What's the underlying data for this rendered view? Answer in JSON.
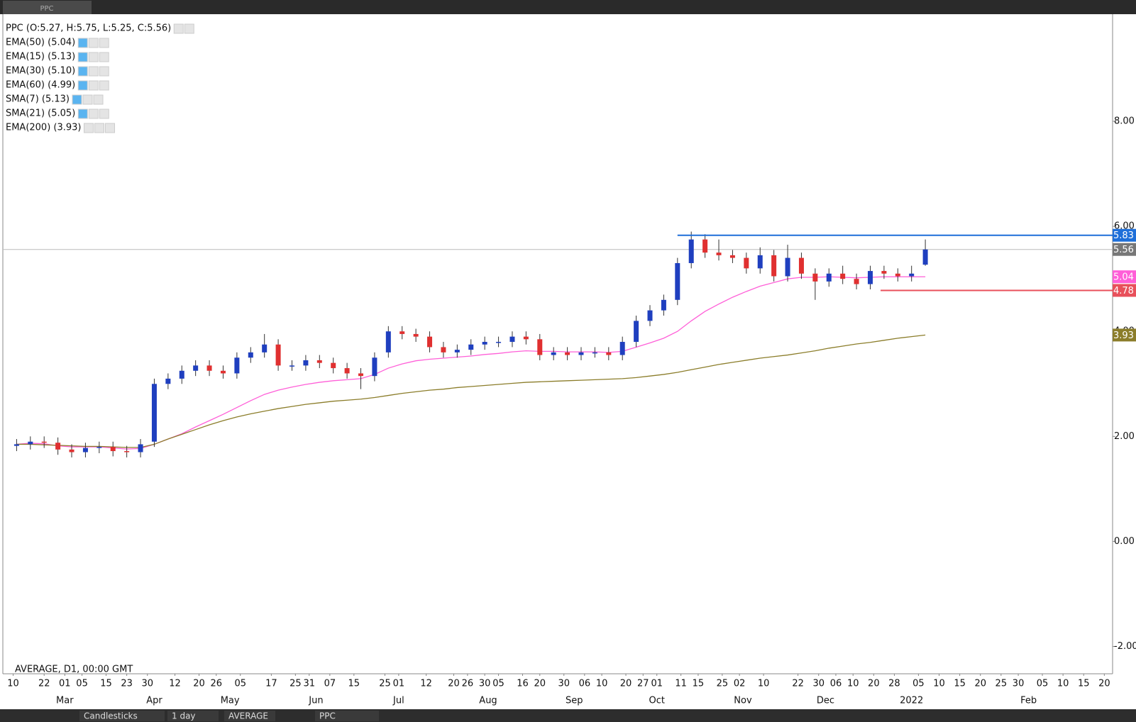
{
  "top_bar": {
    "tab": "PPC"
  },
  "legend": [
    "PPC (O:5.27, H:5.75, L:5.25, C:5.56)",
    "EMA(50) (5.04)",
    "EMA(15) (5.13)",
    "EMA(30) (5.10)",
    "EMA(60) (4.99)",
    "SMA(7) (5.13)",
    "SMA(21) (5.05)",
    "EMA(200) (3.93)"
  ],
  "footer_note": "AVERAGE, D1, 00:00 GMT",
  "toolbar": [
    "Candlesticks",
    "1 day",
    "AVERAGE",
    "PPC"
  ],
  "chart_data": {
    "type": "candlestick",
    "up_color": "#1f3fbf",
    "down_color": "#e03030",
    "x": [
      1,
      5,
      9,
      13,
      17,
      21,
      25,
      29,
      33,
      37,
      41,
      45,
      49,
      53,
      57,
      61,
      65,
      69,
      73,
      77,
      81,
      85,
      89,
      93,
      97,
      101,
      105,
      109,
      113,
      117,
      121,
      125,
      129,
      133,
      137,
      141,
      145,
      149,
      153,
      157,
      161,
      165,
      169,
      173,
      177,
      181,
      185,
      189,
      193,
      197,
      201,
      205,
      209,
      213,
      217,
      221,
      225,
      229,
      233,
      237,
      241,
      245,
      249,
      253,
      257,
      261,
      265
    ],
    "open": [
      1.82,
      1.85,
      1.9,
      1.88,
      1.75,
      1.7,
      1.78,
      1.8,
      1.72,
      1.7,
      1.9,
      3.0,
      3.1,
      3.25,
      3.35,
      3.25,
      3.2,
      3.5,
      3.6,
      3.75,
      3.35,
      3.35,
      3.45,
      3.4,
      3.3,
      3.2,
      3.15,
      3.6,
      4.0,
      3.95,
      3.9,
      3.7,
      3.6,
      3.65,
      3.75,
      3.8,
      3.8,
      3.9,
      3.85,
      3.55,
      3.6,
      3.55,
      3.6,
      3.6,
      3.55,
      3.8,
      4.2,
      4.4,
      4.6,
      5.3,
      5.75,
      5.5,
      5.45,
      5.4,
      5.2,
      5.45,
      5.05,
      5.4,
      5.1,
      4.95,
      5.1,
      5.0,
      4.9,
      5.15,
      5.1,
      5.05,
      5.27
    ],
    "high": [
      1.95,
      2.0,
      2.0,
      1.98,
      1.85,
      1.88,
      1.9,
      1.9,
      1.82,
      1.95,
      3.1,
      3.2,
      3.35,
      3.45,
      3.45,
      3.35,
      3.6,
      3.7,
      3.95,
      3.85,
      3.45,
      3.55,
      3.55,
      3.5,
      3.4,
      3.3,
      3.6,
      4.1,
      4.1,
      4.05,
      4.0,
      3.8,
      3.75,
      3.85,
      3.9,
      3.9,
      4.0,
      4.0,
      3.95,
      3.7,
      3.7,
      3.7,
      3.7,
      3.7,
      3.9,
      4.3,
      4.5,
      4.7,
      5.4,
      5.9,
      5.85,
      5.75,
      5.55,
      5.5,
      5.6,
      5.55,
      5.65,
      5.5,
      5.2,
      5.2,
      5.25,
      5.1,
      5.25,
      5.25,
      5.2,
      5.25,
      5.75
    ],
    "low": [
      1.72,
      1.75,
      1.78,
      1.65,
      1.6,
      1.6,
      1.68,
      1.62,
      1.6,
      1.6,
      1.8,
      2.9,
      3.0,
      3.15,
      3.15,
      3.1,
      3.1,
      3.4,
      3.5,
      3.25,
      3.25,
      3.25,
      3.3,
      3.2,
      3.1,
      2.9,
      3.05,
      3.5,
      3.85,
      3.8,
      3.6,
      3.5,
      3.5,
      3.55,
      3.65,
      3.7,
      3.7,
      3.75,
      3.45,
      3.45,
      3.45,
      3.45,
      3.5,
      3.45,
      3.45,
      3.7,
      4.1,
      4.3,
      4.5,
      5.2,
      5.4,
      5.35,
      5.3,
      5.1,
      5.1,
      4.95,
      4.95,
      5.0,
      4.6,
      4.85,
      4.9,
      4.8,
      4.8,
      5.0,
      4.95,
      4.95,
      5.25
    ],
    "close": [
      1.85,
      1.9,
      1.88,
      1.75,
      1.7,
      1.78,
      1.8,
      1.72,
      1.7,
      1.85,
      3.0,
      3.1,
      3.25,
      3.35,
      3.25,
      3.2,
      3.5,
      3.6,
      3.75,
      3.35,
      3.35,
      3.45,
      3.4,
      3.3,
      3.2,
      3.15,
      3.5,
      4.0,
      3.95,
      3.9,
      3.7,
      3.6,
      3.65,
      3.75,
      3.8,
      3.8,
      3.9,
      3.85,
      3.55,
      3.6,
      3.55,
      3.6,
      3.6,
      3.55,
      3.8,
      4.2,
      4.4,
      4.6,
      5.3,
      5.75,
      5.5,
      5.45,
      5.4,
      5.2,
      5.45,
      5.05,
      5.4,
      5.1,
      4.95,
      5.1,
      5.0,
      4.9,
      5.15,
      5.1,
      5.05,
      5.1,
      5.56
    ],
    "series": [
      {
        "name": "EMA(50)",
        "color": "#ff5fd8",
        "values": [
          1.85,
          1.87,
          1.86,
          1.82,
          1.8,
          1.8,
          1.8,
          1.78,
          1.76,
          1.77,
          1.85,
          1.95,
          2.05,
          2.18,
          2.3,
          2.42,
          2.55,
          2.68,
          2.8,
          2.88,
          2.94,
          2.99,
          3.03,
          3.06,
          3.08,
          3.1,
          3.18,
          3.3,
          3.38,
          3.44,
          3.47,
          3.49,
          3.51,
          3.53,
          3.56,
          3.58,
          3.61,
          3.63,
          3.62,
          3.62,
          3.61,
          3.61,
          3.61,
          3.6,
          3.62,
          3.7,
          3.78,
          3.87,
          4.0,
          4.2,
          4.38,
          4.52,
          4.65,
          4.76,
          4.86,
          4.93,
          5.0,
          5.03,
          5.03,
          5.04,
          5.03,
          5.02,
          5.03,
          5.04,
          5.04,
          5.04,
          5.04
        ]
      },
      {
        "name": "EMA(200)",
        "color": "#8b7d2a",
        "values": [
          1.85,
          1.85,
          1.84,
          1.83,
          1.82,
          1.81,
          1.81,
          1.8,
          1.79,
          1.79,
          1.85,
          1.95,
          2.04,
          2.13,
          2.22,
          2.3,
          2.37,
          2.43,
          2.48,
          2.53,
          2.57,
          2.61,
          2.64,
          2.67,
          2.69,
          2.71,
          2.74,
          2.78,
          2.82,
          2.85,
          2.88,
          2.9,
          2.93,
          2.95,
          2.97,
          2.99,
          3.01,
          3.03,
          3.04,
          3.05,
          3.06,
          3.07,
          3.08,
          3.09,
          3.1,
          3.12,
          3.15,
          3.18,
          3.22,
          3.27,
          3.32,
          3.37,
          3.41,
          3.45,
          3.49,
          3.52,
          3.55,
          3.59,
          3.63,
          3.68,
          3.72,
          3.76,
          3.79,
          3.83,
          3.87,
          3.9,
          3.93
        ]
      }
    ],
    "levels": [
      {
        "value": 5.83,
        "color": "#1e6fd9",
        "from": 193
      },
      {
        "value": 4.78,
        "color": "#e8505b",
        "from": 252
      }
    ],
    "last_price_color": "#777777",
    "xlim": [
      -3,
      319.4
    ],
    "ylim": [
      -2.52,
      10.04
    ],
    "yticks": [
      {
        "value": -2,
        "label": "-2.00"
      },
      {
        "value": 0,
        "label": "0.00"
      },
      {
        "value": 2,
        "label": "2.00"
      },
      {
        "value": 4,
        "label": "4.00"
      },
      {
        "value": 6,
        "label": "6.00"
      },
      {
        "value": 8,
        "label": "8.00"
      }
    ],
    "xticks": [
      {
        "value": 0,
        "label": "10"
      },
      {
        "value": 9,
        "label": "22"
      },
      {
        "value": 15,
        "label": "01"
      },
      {
        "value": 20,
        "label": "05"
      },
      {
        "value": 27,
        "label": "15"
      },
      {
        "value": 33,
        "label": "23"
      },
      {
        "value": 39,
        "label": "30"
      },
      {
        "value": 47,
        "label": "12"
      },
      {
        "value": 54,
        "label": "20"
      },
      {
        "value": 59,
        "label": "26"
      },
      {
        "value": 66,
        "label": "05"
      },
      {
        "value": 75,
        "label": "17"
      },
      {
        "value": 82,
        "label": "25"
      },
      {
        "value": 86,
        "label": "31"
      },
      {
        "value": 92,
        "label": "07"
      },
      {
        "value": 99,
        "label": "15"
      },
      {
        "value": 108,
        "label": "25"
      },
      {
        "value": 112,
        "label": "01"
      },
      {
        "value": 120,
        "label": "12"
      },
      {
        "value": 128,
        "label": "20"
      },
      {
        "value": 132,
        "label": "26"
      },
      {
        "value": 137,
        "label": "30"
      },
      {
        "value": 141,
        "label": "05"
      },
      {
        "value": 148,
        "label": "16"
      },
      {
        "value": 153,
        "label": "20"
      },
      {
        "value": 160,
        "label": "30"
      },
      {
        "value": 166,
        "label": "06"
      },
      {
        "value": 171,
        "label": "10"
      },
      {
        "value": 178,
        "label": "20"
      },
      {
        "value": 183,
        "label": "27"
      },
      {
        "value": 187,
        "label": "01"
      },
      {
        "value": 194,
        "label": "11"
      },
      {
        "value": 199,
        "label": "15"
      },
      {
        "value": 206,
        "label": "25"
      },
      {
        "value": 211,
        "label": "02"
      },
      {
        "value": 218,
        "label": "10"
      },
      {
        "value": 228,
        "label": "22"
      },
      {
        "value": 234,
        "label": "30"
      },
      {
        "value": 239,
        "label": "06"
      },
      {
        "value": 244,
        "label": "10"
      },
      {
        "value": 250,
        "label": "20"
      },
      {
        "value": 256,
        "label": "28"
      },
      {
        "value": 263,
        "label": "05"
      },
      {
        "value": 269,
        "label": "10"
      },
      {
        "value": 275,
        "label": "15"
      },
      {
        "value": 281,
        "label": "20"
      },
      {
        "value": 287,
        "label": "25"
      },
      {
        "value": 292,
        "label": "30"
      },
      {
        "value": 299,
        "label": "05"
      },
      {
        "value": 305,
        "label": "10"
      },
      {
        "value": 311,
        "label": "15"
      },
      {
        "value": 317,
        "label": "20"
      }
    ],
    "month_ticks": [
      {
        "value": 15,
        "label": "Mar"
      },
      {
        "value": 41,
        "label": "Apr"
      },
      {
        "value": 63,
        "label": "May"
      },
      {
        "value": 88,
        "label": "Jun"
      },
      {
        "value": 112,
        "label": "Jul"
      },
      {
        "value": 138,
        "label": "Aug"
      },
      {
        "value": 163,
        "label": "Sep"
      },
      {
        "value": 187,
        "label": "Oct"
      },
      {
        "value": 212,
        "label": "Nov"
      },
      {
        "value": 236,
        "label": "Dec"
      },
      {
        "value": 261,
        "label": "2022"
      },
      {
        "value": 295,
        "label": "Feb"
      }
    ]
  }
}
